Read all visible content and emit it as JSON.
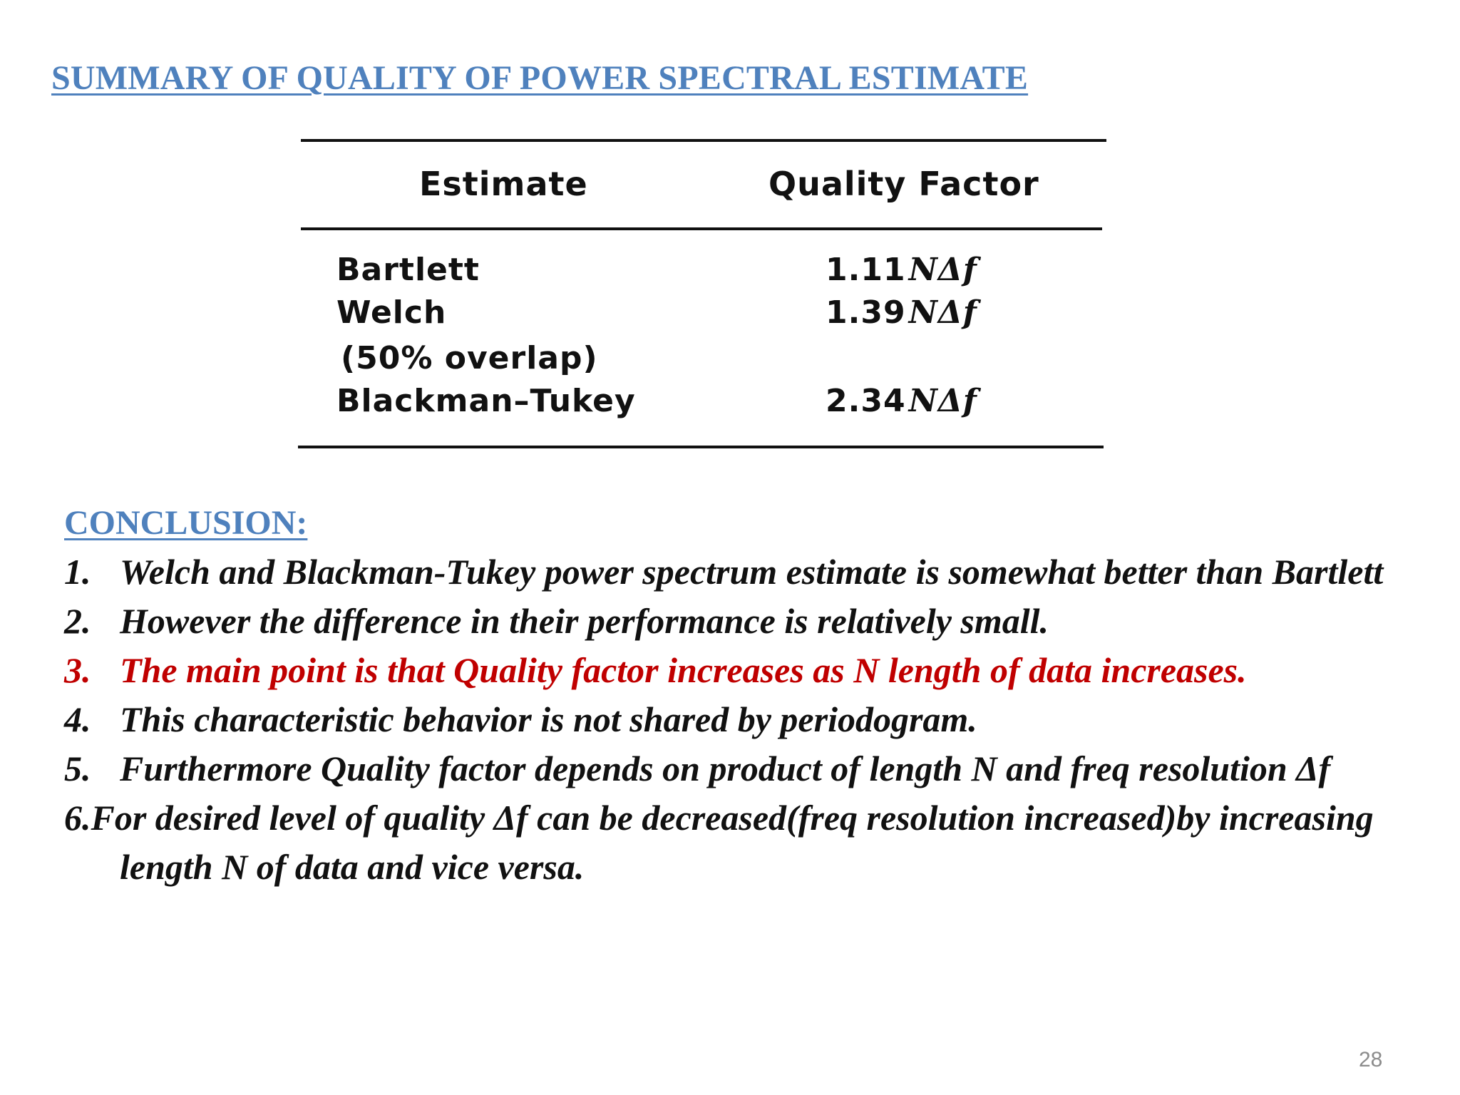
{
  "title": "SUMMARY OF QUALITY OF POWER SPECTRAL ESTIMATE",
  "table": {
    "headers": {
      "estimate": "Estimate",
      "quality": "Quality Factor"
    },
    "rows": [
      {
        "name": "Bartlett",
        "value": "1.11",
        "unit": "NΔf"
      },
      {
        "name": "Welch",
        "value": "1.39",
        "unit": "NΔf"
      },
      {
        "name": "(50% overlap)",
        "value": "",
        "unit": ""
      },
      {
        "name": "Blackman–Tukey",
        "value": "2.34",
        "unit": "NΔf"
      }
    ]
  },
  "conclusion": {
    "heading": "CONCLUSION:",
    "items": [
      {
        "num": "1.",
        "text": "Welch and Blackman-Tukey power spectrum estimate is somewhat better than Bartlett"
      },
      {
        "num": "2.",
        "text": "However the difference in their performance is relatively small."
      },
      {
        "num": "3.",
        "text": "The main point is that Quality factor increases as N length of data increases."
      },
      {
        "num": "4.",
        "text": "This characteristic behavior is not shared by periodogram."
      },
      {
        "num": "5.",
        "text": "Furthermore Quality factor depends on product of length N and freq resolution Δf"
      },
      {
        "num": "6.",
        "text": "For desired level of quality Δf can be decreased(freq resolution increased)by increasing length N of data and vice versa."
      }
    ]
  },
  "page_number": "28",
  "colors": {
    "heading_blue": "#4f81bd",
    "highlight_red": "#c00000",
    "text": "#111111"
  }
}
